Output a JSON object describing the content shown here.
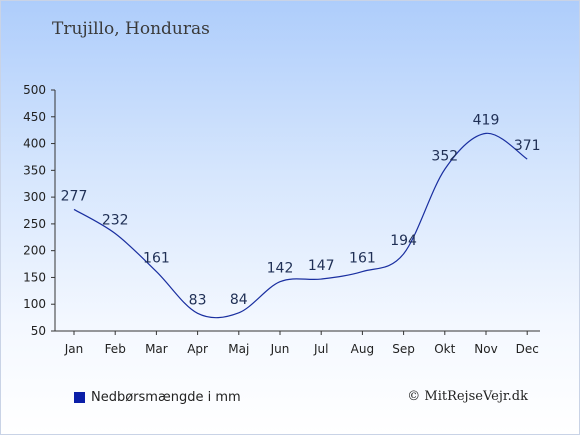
{
  "header": {
    "title": "Trujillo, Honduras"
  },
  "legend": {
    "label": "Nedbørsmængde i mm",
    "color": "#0a1ea8"
  },
  "footer": {
    "copyright": "© MitRejseVejr.dk"
  },
  "chart_data": {
    "type": "line",
    "title": "Trujillo, Honduras",
    "xlabel": "",
    "ylabel": "",
    "categories": [
      "Jan",
      "Feb",
      "Mar",
      "Apr",
      "Maj",
      "Jun",
      "Jul",
      "Aug",
      "Sep",
      "Okt",
      "Nov",
      "Dec"
    ],
    "series": [
      {
        "name": "Nedbørsmængde i mm",
        "values": [
          277,
          232,
          161,
          83,
          84,
          142,
          147,
          161,
          194,
          352,
          419,
          371
        ],
        "color": "#1a2fa0"
      }
    ],
    "ylim": [
      50,
      500
    ],
    "yticks": [
      50,
      100,
      150,
      200,
      250,
      300,
      350,
      400,
      450,
      500
    ],
    "grid": false,
    "legend_position": "bottom-left"
  }
}
